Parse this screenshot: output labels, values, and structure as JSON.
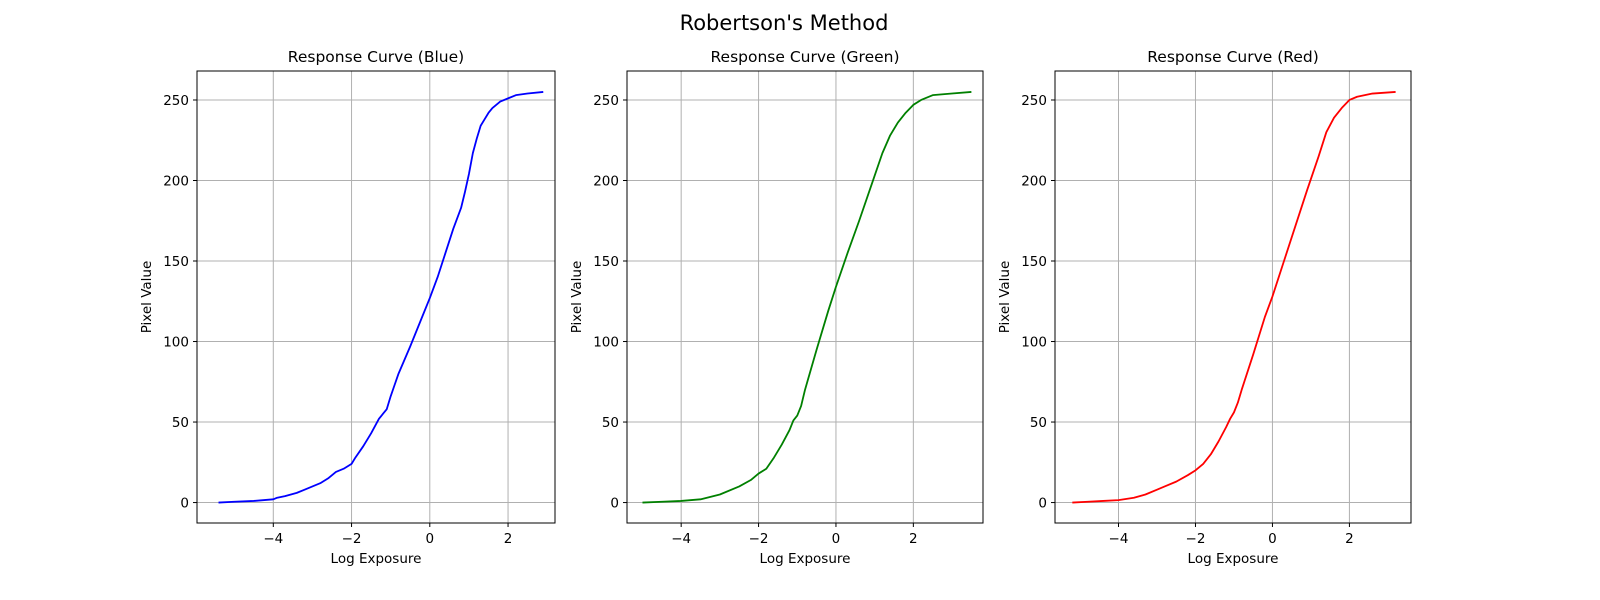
{
  "figure_title": "Robertson's Method",
  "chart_data": [
    {
      "type": "line",
      "title": "Response Curve (Blue)",
      "xlabel": "Log Exposure",
      "ylabel": "Pixel Value",
      "xlim": [
        -5.95,
        3.2
      ],
      "ylim": [
        -12.7,
        268
      ],
      "xticks": [
        -4,
        -2,
        0,
        2
      ],
      "yticks": [
        0,
        50,
        100,
        150,
        200,
        250
      ],
      "grid": true,
      "series": [
        {
          "name": "Blue",
          "color": "#0000ff",
          "x": [
            -5.4,
            -5.0,
            -4.5,
            -4.0,
            -3.9,
            -3.7,
            -3.4,
            -3.2,
            -3.0,
            -2.8,
            -2.6,
            -2.4,
            -2.2,
            -2.0,
            -1.9,
            -1.7,
            -1.5,
            -1.3,
            -1.2,
            -1.1,
            -1.0,
            -0.9,
            -0.8,
            -0.5,
            -0.2,
            0.0,
            0.2,
            0.4,
            0.6,
            0.8,
            0.9,
            1.0,
            1.1,
            1.2,
            1.3,
            1.4,
            1.5,
            1.6,
            1.8,
            2.0,
            2.2,
            2.5,
            2.9
          ],
          "y": [
            0,
            0.5,
            1,
            2,
            3,
            4,
            6,
            8,
            10,
            12,
            15,
            19,
            21,
            24,
            28,
            35,
            43,
            52,
            55,
            58,
            66,
            73,
            80,
            97,
            115,
            127,
            140,
            155,
            170,
            183,
            193,
            204,
            217,
            226,
            234,
            238,
            242,
            245,
            249,
            251,
            253,
            254,
            255
          ]
        }
      ]
    },
    {
      "type": "line",
      "title": "Response Curve (Green)",
      "xlabel": "Log Exposure",
      "ylabel": "Pixel Value",
      "xlim": [
        -5.4,
        3.8
      ],
      "ylim": [
        -12.7,
        268
      ],
      "xticks": [
        -4,
        -2,
        0,
        2
      ],
      "yticks": [
        0,
        50,
        100,
        150,
        200,
        250
      ],
      "grid": true,
      "series": [
        {
          "name": "Green",
          "color": "#008000",
          "x": [
            -5.0,
            -4.5,
            -4.0,
            -3.5,
            -3.0,
            -2.5,
            -2.2,
            -2.0,
            -1.8,
            -1.6,
            -1.4,
            -1.2,
            -1.1,
            -1.0,
            -0.9,
            -0.8,
            -0.5,
            -0.2,
            0.0,
            0.3,
            0.6,
            0.9,
            1.2,
            1.4,
            1.6,
            1.8,
            2.0,
            2.2,
            2.5,
            3.0,
            3.5
          ],
          "y": [
            0,
            0.5,
            1,
            2,
            5,
            10,
            14,
            18,
            21,
            28,
            36,
            45,
            51,
            54,
            60,
            70,
            95,
            119,
            134,
            155,
            175,
            196,
            217,
            228,
            236,
            242,
            247,
            250,
            253,
            254,
            255
          ]
        }
      ]
    },
    {
      "type": "line",
      "title": "Response Curve (Red)",
      "xlabel": "Log Exposure",
      "ylabel": "Pixel Value",
      "xlim": [
        -5.65,
        3.6
      ],
      "ylim": [
        -12.7,
        268
      ],
      "xticks": [
        -4,
        -2,
        0,
        2
      ],
      "yticks": [
        0,
        50,
        100,
        150,
        200,
        250
      ],
      "grid": true,
      "series": [
        {
          "name": "Red",
          "color": "#ff0000",
          "x": [
            -5.2,
            -4.8,
            -4.4,
            -4.0,
            -3.6,
            -3.3,
            -3.0,
            -2.8,
            -2.5,
            -2.2,
            -2.0,
            -1.8,
            -1.6,
            -1.4,
            -1.2,
            -1.1,
            -1.0,
            -0.9,
            -0.8,
            -0.5,
            -0.2,
            0.0,
            0.3,
            0.6,
            0.9,
            1.2,
            1.4,
            1.6,
            1.8,
            2.0,
            2.2,
            2.4,
            2.6,
            3.2
          ],
          "y": [
            0,
            0.5,
            1,
            1.5,
            3,
            5,
            8,
            10,
            13,
            17,
            20,
            24,
            30,
            38,
            47,
            52,
            56,
            62,
            70,
            92,
            115,
            128,
            150,
            172,
            194,
            215,
            230,
            239,
            245,
            250,
            252,
            253,
            254,
            255
          ]
        }
      ]
    }
  ]
}
